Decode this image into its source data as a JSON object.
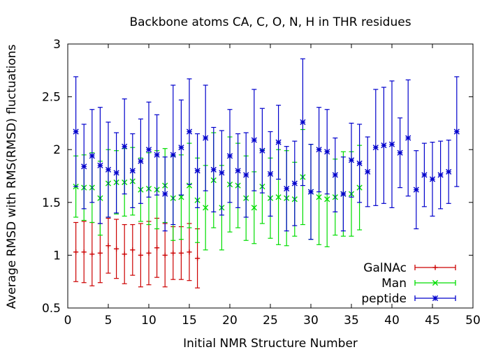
{
  "chart_data": {
    "type": "scatter",
    "title": "Backbone atoms CA, C, O, N, H in THR residues",
    "xlabel": "Initial NMR Structure Number",
    "ylabel": "Average RMSD with RMS(RMSD) fluctuations",
    "xlim": [
      0,
      50
    ],
    "ylim": [
      0.5,
      3
    ],
    "xticks": [
      0,
      5,
      10,
      15,
      20,
      25,
      30,
      35,
      40,
      45,
      50
    ],
    "yticks": [
      0.5,
      1,
      1.5,
      2,
      2.5,
      3
    ],
    "xtick_labels": [
      "0",
      "5",
      "10",
      "15",
      "20",
      "25",
      "30",
      "35",
      "40",
      "45",
      "50"
    ],
    "ytick_labels": [
      "0.5",
      "1",
      "1.5",
      "2",
      "2.5",
      "3"
    ],
    "grid": false,
    "legend_position": "bottom-right",
    "series": [
      {
        "name": "GalNAc",
        "color": "#cc0000",
        "marker": "plus",
        "x": [
          1,
          2,
          3,
          4,
          5,
          6,
          7,
          8,
          9,
          10,
          11,
          12,
          13,
          14,
          15,
          16
        ],
        "y": [
          1.03,
          1.03,
          1.01,
          1.02,
          1.09,
          1.06,
          1.01,
          1.05,
          1.0,
          1.02,
          1.07,
          1.0,
          1.02,
          1.02,
          1.03,
          0.97
        ],
        "err": [
          0.28,
          0.29,
          0.3,
          0.28,
          0.26,
          0.28,
          0.28,
          0.24,
          0.3,
          0.3,
          0.28,
          0.3,
          0.25,
          0.25,
          0.27,
          0.28
        ]
      },
      {
        "name": "Man",
        "color": "#00dd00",
        "marker": "cross",
        "x": [
          1,
          2,
          3,
          4,
          5,
          6,
          7,
          8,
          9,
          10,
          11,
          12,
          13,
          14,
          15,
          16,
          17,
          18,
          19,
          20,
          21,
          22,
          23,
          24,
          25,
          26,
          27,
          28,
          29,
          30,
          31,
          32,
          33,
          34,
          35,
          36
        ],
        "y": [
          1.65,
          1.64,
          1.64,
          1.54,
          1.68,
          1.69,
          1.69,
          1.7,
          1.62,
          1.63,
          1.62,
          1.66,
          1.54,
          1.55,
          1.66,
          1.52,
          1.45,
          1.71,
          1.45,
          1.67,
          1.66,
          1.54,
          1.45,
          1.65,
          1.54,
          1.55,
          1.54,
          1.53,
          1.74,
          1.6,
          1.55,
          1.53,
          1.55,
          1.58,
          1.58,
          1.64
        ],
        "err": [
          0.29,
          0.31,
          0.33,
          0.35,
          0.32,
          0.3,
          0.32,
          0.32,
          0.3,
          0.34,
          0.37,
          0.35,
          0.4,
          0.4,
          0.4,
          0.4,
          0.4,
          0.45,
          0.4,
          0.45,
          0.4,
          0.4,
          0.34,
          0.35,
          0.38,
          0.45,
          0.45,
          0.35,
          0.45,
          0.45,
          0.45,
          0.45,
          0.36,
          0.4,
          0.4,
          0.4
        ]
      },
      {
        "name": "peptide",
        "color": "#0000cc",
        "marker": "star",
        "x": [
          1,
          2,
          3,
          4,
          5,
          6,
          7,
          8,
          9,
          10,
          11,
          12,
          13,
          14,
          15,
          16,
          17,
          18,
          19,
          20,
          21,
          22,
          23,
          24,
          25,
          26,
          27,
          28,
          29,
          30,
          31,
          32,
          33,
          34,
          35,
          36,
          37,
          38,
          39,
          40,
          41,
          42,
          43,
          44,
          45,
          46,
          47,
          48
        ],
        "y": [
          2.17,
          1.84,
          1.94,
          1.85,
          1.81,
          1.78,
          2.03,
          1.8,
          1.89,
          2.0,
          1.95,
          1.58,
          1.95,
          2.02,
          2.17,
          1.8,
          2.11,
          1.81,
          1.78,
          1.94,
          1.8,
          1.76,
          2.09,
          1.99,
          1.77,
          2.07,
          1.63,
          1.68,
          2.26,
          1.6,
          2.0,
          1.98,
          1.76,
          1.58,
          1.9,
          1.87,
          1.79,
          2.02,
          2.04,
          2.05,
          1.97,
          2.11,
          1.62,
          1.76,
          1.72,
          1.76,
          1.79,
          2.17
        ],
        "err": [
          0.52,
          0.4,
          0.44,
          0.55,
          0.45,
          0.38,
          0.45,
          0.35,
          0.4,
          0.45,
          0.38,
          0.35,
          0.66,
          0.45,
          0.5,
          0.35,
          0.5,
          0.4,
          0.4,
          0.44,
          0.35,
          0.4,
          0.48,
          0.4,
          0.4,
          0.35,
          0.4,
          0.4,
          0.6,
          0.45,
          0.4,
          0.4,
          0.35,
          0.35,
          0.35,
          0.37,
          0.33,
          0.55,
          0.55,
          0.6,
          0.33,
          0.55,
          0.37,
          0.3,
          0.35,
          0.32,
          0.3,
          0.52
        ]
      }
    ]
  }
}
